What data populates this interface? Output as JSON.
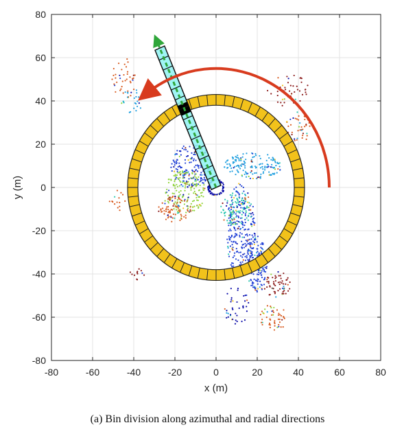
{
  "chart_data": {
    "type": "scatter",
    "title": "",
    "xlabel": "x (m)",
    "ylabel": "y (m)",
    "xlim": [
      -80,
      80
    ],
    "ylim": [
      -80,
      80
    ],
    "xticks": [
      -80,
      -60,
      -40,
      -20,
      0,
      20,
      40,
      60,
      80
    ],
    "yticks": [
      -80,
      -60,
      -40,
      -20,
      0,
      20,
      40,
      60,
      80
    ],
    "grid": true,
    "ring": {
      "inner_radius": 38,
      "outer_radius": 43,
      "azimuth_bins": 60,
      "fill_color": "#f2c21b"
    },
    "radial_strip": {
      "angle_deg": 113,
      "r_start": 0,
      "r_end": 70,
      "width": 5,
      "bins": 14,
      "highlighted_bin_r": [
        37,
        42
      ],
      "fill_color": "#8ff3f3"
    },
    "azimuth_arrow": {
      "radius": 55,
      "start_deg": 0,
      "end_deg": 128,
      "color": "#d83b1e"
    },
    "radial_arrow": {
      "angle_deg": 113,
      "from_r": 0,
      "to_r": 74,
      "color": "#2fa63a"
    },
    "point_cloud": {
      "colors": [
        "#0a0aa8",
        "#1f3fd6",
        "#21a0e0",
        "#2bc9b0",
        "#8fd33a",
        "#f2c21b",
        "#d85a1e",
        "#8b1a1a"
      ],
      "regions": [
        {
          "cx": 0,
          "cy": 0,
          "rx": 4,
          "ry": 4,
          "n": 160,
          "color_index": 0
        },
        {
          "cx": 12,
          "cy": -20,
          "rx": 7,
          "ry": 22,
          "n": 260,
          "color_index": 1
        },
        {
          "cx": 20,
          "cy": -35,
          "rx": 5,
          "ry": 14,
          "n": 140,
          "color_index": 1
        },
        {
          "cx": -12,
          "cy": 10,
          "rx": 10,
          "ry": 10,
          "n": 180,
          "color_index": 1
        },
        {
          "cx": 18,
          "cy": 10,
          "rx": 14,
          "ry": 6,
          "n": 160,
          "color_index": 2
        },
        {
          "cx": -15,
          "cy": -2,
          "rx": 10,
          "ry": 10,
          "n": 160,
          "color_index": 4
        },
        {
          "cx": -20,
          "cy": -10,
          "rx": 8,
          "ry": 6,
          "n": 90,
          "color_index": 6
        },
        {
          "cx": 10,
          "cy": -10,
          "rx": 8,
          "ry": 8,
          "n": 100,
          "color_index": 3
        },
        {
          "cx": -45,
          "cy": 50,
          "rx": 6,
          "ry": 10,
          "n": 40,
          "color_index": 6
        },
        {
          "cx": 35,
          "cy": 45,
          "rx": 10,
          "ry": 8,
          "n": 45,
          "color_index": 7
        },
        {
          "cx": 30,
          "cy": -45,
          "rx": 7,
          "ry": 6,
          "n": 60,
          "color_index": 7
        },
        {
          "cx": 28,
          "cy": -60,
          "rx": 7,
          "ry": 6,
          "n": 50,
          "color_index": 6
        },
        {
          "cx": 40,
          "cy": 28,
          "rx": 6,
          "ry": 8,
          "n": 45,
          "color_index": 6
        },
        {
          "cx": -38,
          "cy": -40,
          "rx": 4,
          "ry": 4,
          "n": 12,
          "color_index": 7
        },
        {
          "cx": -48,
          "cy": -5,
          "rx": 4,
          "ry": 6,
          "n": 15,
          "color_index": 6
        },
        {
          "cx": 10,
          "cy": -55,
          "rx": 6,
          "ry": 10,
          "n": 40,
          "color_index": 0
        },
        {
          "cx": -40,
          "cy": 40,
          "rx": 6,
          "ry": 6,
          "n": 25,
          "color_index": 2
        }
      ]
    }
  },
  "caption": "(a) Bin division along azimuthal and radial directions"
}
